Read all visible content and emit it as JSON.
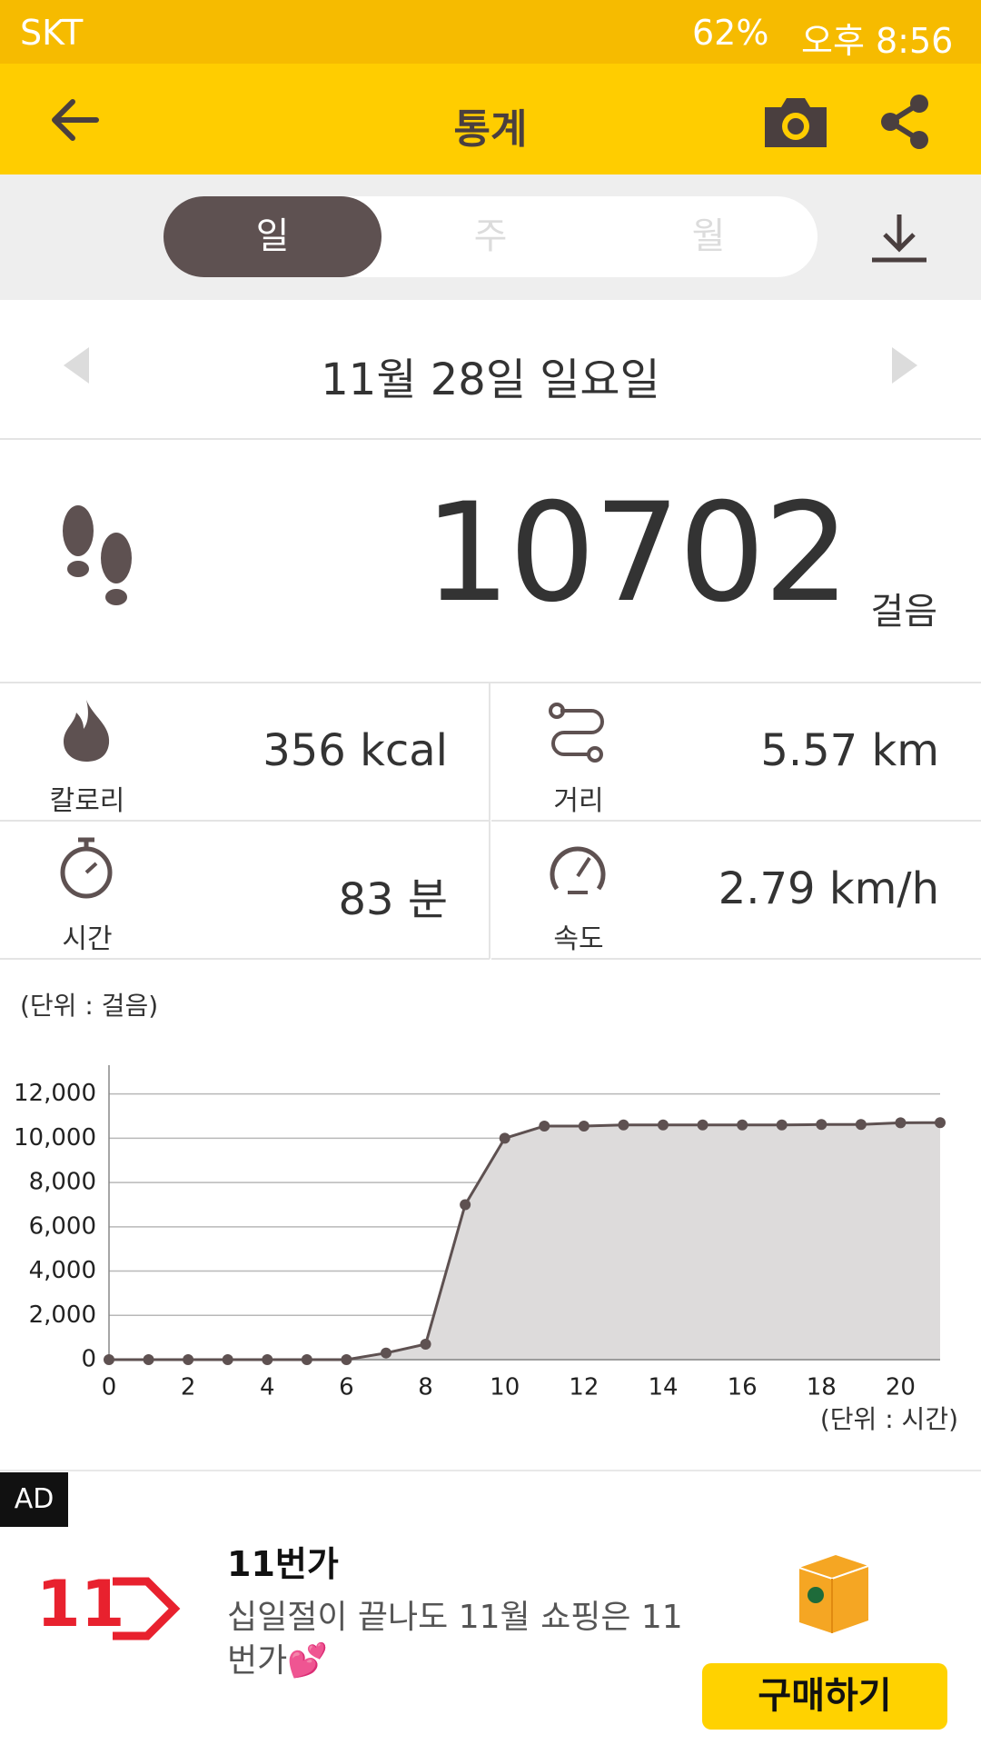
{
  "status_bar": {
    "carrier": "SKT",
    "battery": "62%",
    "time": "오후 8:56"
  },
  "header": {
    "title": "통계"
  },
  "tabs": [
    "일",
    "주",
    "월"
  ],
  "date": "11월 28일 일요일",
  "steps": {
    "value": "10702",
    "unit": "걸음"
  },
  "stats": [
    {
      "label": "칼로리",
      "value": "356 kcal"
    },
    {
      "label": "거리",
      "value": "5.57 km"
    },
    {
      "label": "시간",
      "value": "83 분"
    },
    {
      "label": "속도",
      "value": "2.79 km/h"
    }
  ],
  "chart_data": {
    "type": "area",
    "y_unit_label": "(단위 : 걸음)",
    "x_unit_label": "(단위 : 시간)",
    "x": [
      0,
      1,
      2,
      3,
      4,
      5,
      6,
      7,
      8,
      9,
      10,
      11,
      12,
      13,
      14,
      15,
      16,
      17,
      18,
      19,
      20,
      21
    ],
    "values": [
      0,
      0,
      0,
      0,
      0,
      0,
      0,
      300,
      700,
      7000,
      10000,
      10550,
      10550,
      10600,
      10600,
      10600,
      10600,
      10600,
      10620,
      10620,
      10700,
      10702
    ],
    "color": "#5e5151",
    "fill": "#dddbdb",
    "xlim": [
      0,
      21
    ],
    "ylim": [
      0,
      13300
    ],
    "xticks": [
      0,
      2,
      4,
      6,
      8,
      10,
      12,
      14,
      16,
      18,
      20
    ],
    "yticks": [
      0,
      {
        "value": 2000,
        "label": "2,000"
      },
      {
        "value": 4000,
        "label": "4,000"
      },
      {
        "value": 6000,
        "label": "6,000"
      },
      {
        "value": 8000,
        "label": "8,000"
      },
      {
        "value": 10000,
        "label": "10,000"
      },
      {
        "value": 12000,
        "label": "12,000"
      }
    ],
    "grid": true
  },
  "ad": {
    "badge": "AD",
    "logo": "11",
    "title": "11번가",
    "text": "십일절이 끝나도 11월 쇼핑은 11번가💕",
    "button": "구매하기"
  }
}
